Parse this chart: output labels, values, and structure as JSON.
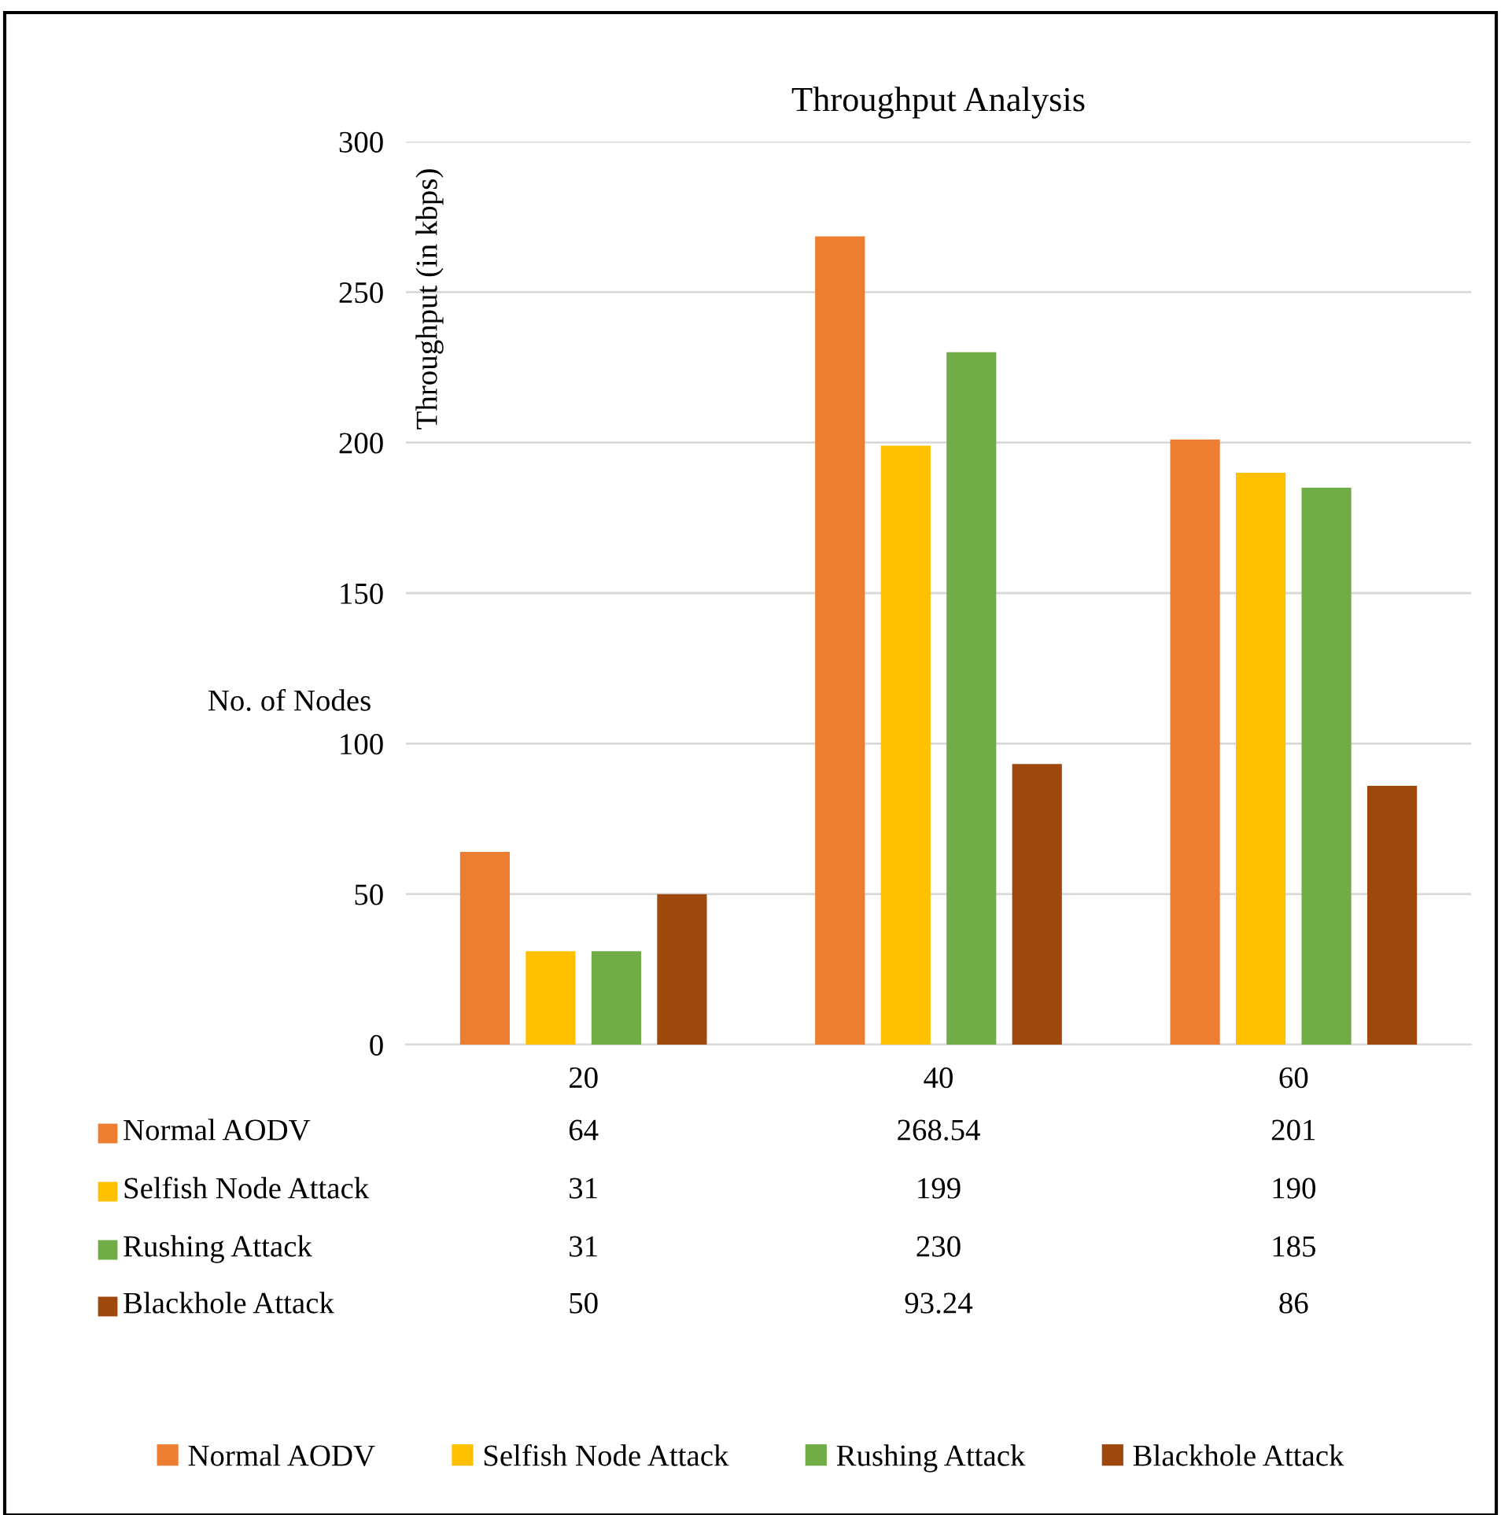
{
  "chart_data": {
    "type": "bar",
    "title": "Throughput Analysis",
    "xlabel": "No. of Nodes",
    "ylabel": "Throughput (in kbps)",
    "categories": [
      "20",
      "40",
      "60"
    ],
    "series": [
      {
        "name": "Normal AODV",
        "color": "#ed7d31",
        "values": [
          64,
          268.54,
          201
        ]
      },
      {
        "name": "Selfish Node Attack",
        "color": "#ffc000",
        "values": [
          31,
          199,
          190
        ]
      },
      {
        "name": "Rushing Attack",
        "color": "#70ad47",
        "values": [
          31,
          230,
          185
        ]
      },
      {
        "name": "Blackhole Attack",
        "color": "#9e480e",
        "values": [
          50,
          93.24,
          86
        ]
      }
    ],
    "ylim": [
      0,
      300
    ],
    "yticks": [
      0,
      50,
      100,
      150,
      200,
      250,
      300
    ],
    "grid": "y",
    "legend": "bottom",
    "data_labels": true
  }
}
